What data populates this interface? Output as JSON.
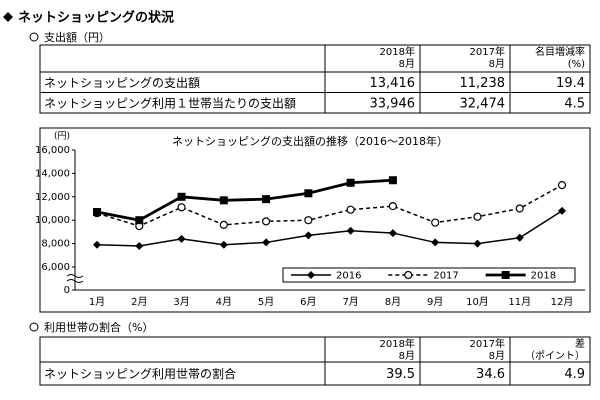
{
  "header": {
    "title": "ネットショッピングの状況"
  },
  "section1": {
    "title": "支出額（円）"
  },
  "table1": {
    "columns": [
      [
        "2018年",
        "8月"
      ],
      [
        "2017年",
        "8月"
      ],
      [
        "名目増減率",
        "(%)"
      ]
    ],
    "rows": [
      [
        "ネットショッピングの支出額",
        "13,416",
        "11,238",
        "19.4"
      ],
      [
        "ネットショッピング利用１世帯当たりの支出額",
        "33,946",
        "32,474",
        "4.5"
      ]
    ]
  },
  "chart_data": {
    "type": "line",
    "title": "ネットショッピングの支出額の推移（2016～2018年）",
    "y_label": "(円)",
    "categories": [
      "1月",
      "2月",
      "3月",
      "4月",
      "5月",
      "6月",
      "7月",
      "8月",
      "9月",
      "10月",
      "11月",
      "12月"
    ],
    "series": [
      {
        "name": "2016",
        "color": "#000000",
        "marker": "diamond",
        "line_style": "solid",
        "values": [
          7900,
          7800,
          8400,
          7900,
          8100,
          8700,
          9100,
          8900,
          8100,
          8000,
          8500,
          10800
        ]
      },
      {
        "name": "2017",
        "color": "#000000",
        "marker": "circle",
        "line_style": "dashed",
        "values": [
          10600,
          9500,
          11100,
          9600,
          9900,
          10000,
          10900,
          11200,
          9800,
          10300,
          11000,
          13000
        ]
      },
      {
        "name": "2018",
        "color": "#000000",
        "marker": "square",
        "line_style": "bold",
        "values": [
          10700,
          10000,
          12000,
          11700,
          11800,
          12300,
          13200,
          13416,
          null,
          null,
          null,
          null
        ]
      }
    ],
    "ylim": [
      0,
      16000
    ],
    "y_break": [
      0,
      6000
    ],
    "yticks": [
      0,
      {
        "value": 6000,
        "label": "6,000"
      },
      {
        "value": 8000,
        "label": "8,000"
      },
      {
        "value": 10000,
        "label": "10,000"
      },
      {
        "value": 12000,
        "label": "12,000"
      },
      {
        "value": 14000,
        "label": "14,000"
      },
      {
        "value": 16000,
        "label": "16,000"
      }
    ],
    "grid": false,
    "legend": "lower-right"
  },
  "section2": {
    "title": "利用世帯の割合（%）"
  },
  "table2": {
    "columns": [
      [
        "2018年",
        "8月"
      ],
      [
        "2017年",
        "8月"
      ],
      [
        "差",
        "（ポイント）"
      ]
    ],
    "rows": [
      [
        "ネットショッピング利用世帯の割合",
        "39.5",
        "34.6",
        "4.9"
      ]
    ]
  }
}
